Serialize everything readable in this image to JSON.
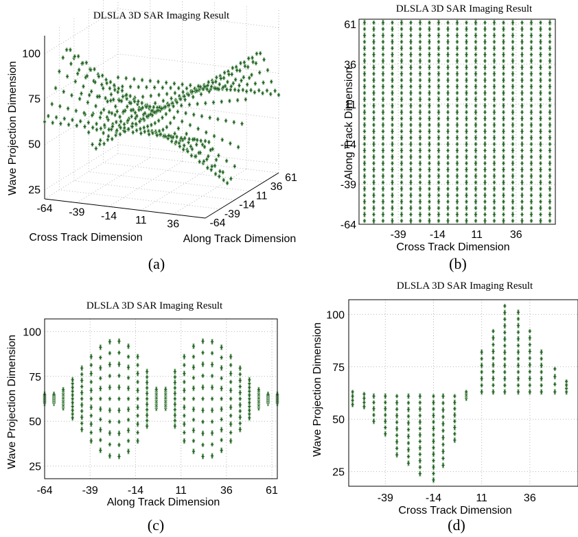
{
  "figure": {
    "colors": {
      "marker": "#1f5a1f",
      "marker_halo": "#9cc49c",
      "grid": "#b5b5b5",
      "axis": "#000000"
    }
  },
  "chart_data": [
    {
      "id": "a",
      "type": "scatter",
      "view": "3d",
      "title": "DLSLA 3D SAR Imaging Result",
      "caption": "(a)",
      "xlabel": "Cross Track Dimension",
      "ylabel": "Along Track Dimension",
      "zlabel": "Wave Projection Dimension",
      "x_ticks": [
        "36",
        "11",
        "-14",
        "-39",
        "-64"
      ],
      "y_ticks": [
        "-64",
        "-39",
        "-14",
        "11",
        "36",
        "61"
      ],
      "z_ticks": [
        "25",
        "50",
        "75",
        "100"
      ],
      "xlim": [
        -64,
        61
      ],
      "ylim": [
        -64,
        61
      ],
      "zlim": [
        20,
        110
      ],
      "grid": true,
      "surface": "z = 62.5 + 42 * (x / 64) * sin(pi * y / 64) * cos(pi * y / 128)"
    },
    {
      "id": "b",
      "type": "scatter",
      "view": "top",
      "title": "DLSLA 3D SAR Imaging Result",
      "caption": "(b)",
      "xlabel": "Cross Track Dimension",
      "ylabel": "Along Track Dimension",
      "x_ticks": [
        "-39",
        "-14",
        "11",
        "36"
      ],
      "y_ticks": [
        "-64",
        "-39",
        "-14",
        "11",
        "36",
        "61"
      ],
      "xlim": [
        -64,
        61
      ],
      "ylim": [
        -64,
        64
      ],
      "grid": true,
      "columns": 21,
      "rows": 32
    },
    {
      "id": "c",
      "type": "scatter",
      "view": "side-along",
      "title": "DLSLA 3D SAR Imaging Result",
      "caption": "(c)",
      "xlabel": "Along Track Dimension",
      "ylabel": "Wave Projection Dimension",
      "x_ticks": [
        "-64",
        "-39",
        "-14",
        "11",
        "36",
        "61"
      ],
      "y_ticks": [
        "25",
        "50",
        "75",
        "100"
      ],
      "xlim": [
        -64,
        64
      ],
      "ylim": [
        18,
        107
      ],
      "grid": true
    },
    {
      "id": "d",
      "type": "scatter",
      "view": "side-cross",
      "title": "DLSLA 3D SAR Imaging Result",
      "caption": "(d)",
      "xlabel": "Cross Track Dimension",
      "ylabel": "Wave Projection Dimension",
      "x_ticks": [
        "-39",
        "-14",
        "11",
        "36"
      ],
      "y_ticks": [
        "25",
        "50",
        "75",
        "100"
      ],
      "xlim": [
        -58,
        61
      ],
      "ylim": [
        18,
        107
      ],
      "grid": true,
      "columns": [
        {
          "x": -56,
          "zmin": 57,
          "zmax": 63
        },
        {
          "x": -50,
          "zmin": 56,
          "zmax": 62
        },
        {
          "x": -45,
          "zmin": 49,
          "zmax": 61
        },
        {
          "x": -39,
          "zmin": 43,
          "zmax": 61
        },
        {
          "x": -33,
          "zmin": 33,
          "zmax": 61
        },
        {
          "x": -27,
          "zmin": 29,
          "zmax": 61
        },
        {
          "x": -21,
          "zmin": 24,
          "zmax": 61
        },
        {
          "x": -14,
          "zmin": 21,
          "zmax": 61
        },
        {
          "x": -9,
          "zmin": 28,
          "zmax": 61
        },
        {
          "x": -3,
          "zmin": 40,
          "zmax": 61
        },
        {
          "x": 3,
          "zmin": 60,
          "zmax": 63
        },
        {
          "x": 11,
          "zmin": 63,
          "zmax": 82
        },
        {
          "x": 17,
          "zmin": 63,
          "zmax": 92
        },
        {
          "x": 23,
          "zmin": 63,
          "zmax": 104
        },
        {
          "x": 30,
          "zmin": 63,
          "zmax": 101
        },
        {
          "x": 36,
          "zmin": 63,
          "zmax": 92
        },
        {
          "x": 42,
          "zmin": 63,
          "zmax": 82
        },
        {
          "x": 49,
          "zmin": 63,
          "zmax": 74
        },
        {
          "x": 55,
          "zmin": 63,
          "zmax": 68
        }
      ]
    }
  ]
}
